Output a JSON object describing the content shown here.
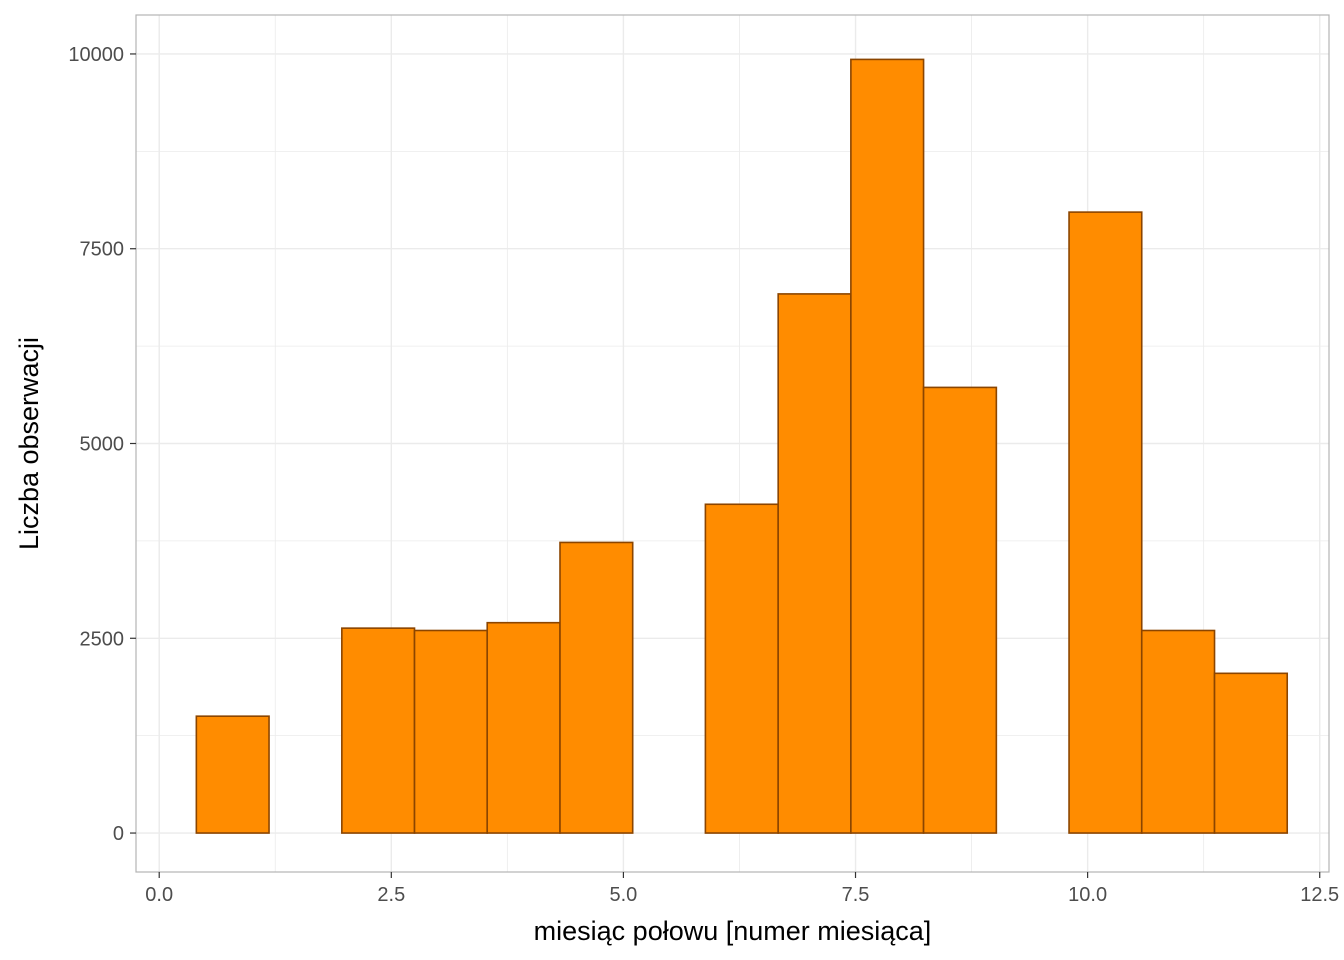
{
  "chart_data": {
    "type": "bar",
    "subtype": "histogram",
    "title": "",
    "xlabel": "miesiąc połowu [numer miesiąca]",
    "ylabel": "Liczba obserwacji",
    "xlim": [
      -0.25,
      12.6
    ],
    "ylim": [
      -500,
      10500
    ],
    "x_ticks": [
      0.0,
      2.5,
      5.0,
      7.5,
      10.0,
      12.5
    ],
    "x_tick_labels": [
      "0.0",
      "2.5",
      "5.0",
      "7.5",
      "10.0",
      "12.5"
    ],
    "y_ticks": [
      0,
      2500,
      5000,
      7500,
      10000
    ],
    "y_tick_labels": [
      "0",
      "2500",
      "5000",
      "7500",
      "10000"
    ],
    "bin_edges": [
      0.4,
      1.183,
      1.967,
      2.75,
      3.533,
      4.317,
      5.1,
      5.883,
      6.667,
      7.45,
      8.233,
      9.017,
      9.8,
      10.583,
      11.367,
      12.15
    ],
    "values": [
      1500,
      0,
      2630,
      2600,
      2700,
      3730,
      0,
      4220,
      6920,
      9930,
      5720,
      0,
      7970,
      2600,
      2050
    ],
    "grid": true,
    "legend": "none",
    "colors": {
      "bar_fill": "#FF8C00",
      "bar_outline": "#8B4500",
      "grid": "#ebebeb",
      "panel_border": "#b3b3b3"
    }
  }
}
